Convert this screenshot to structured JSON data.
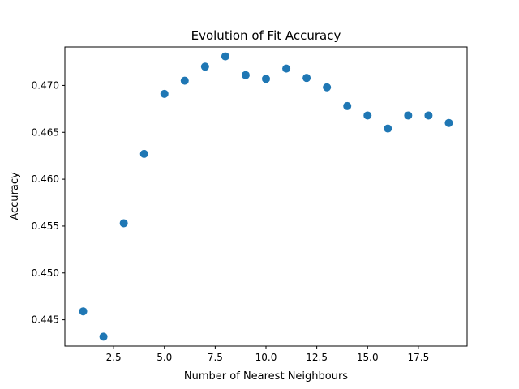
{
  "chart_data": {
    "type": "scatter",
    "title": "Evolution of Fit Accuracy",
    "xlabel": "Number of Nearest Neighbours",
    "ylabel": "Accuracy",
    "xlim": [
      0.1,
      19.9
    ],
    "ylim": [
      0.4422,
      0.4741
    ],
    "xticks": [
      2.5,
      5.0,
      7.5,
      10.0,
      12.5,
      15.0,
      17.5
    ],
    "xtick_labels": [
      "2.5",
      "5.0",
      "7.5",
      "10.0",
      "12.5",
      "15.0",
      "17.5"
    ],
    "yticks": [
      0.445,
      0.45,
      0.455,
      0.46,
      0.465,
      0.47
    ],
    "ytick_labels": [
      "0.445",
      "0.450",
      "0.455",
      "0.460",
      "0.465",
      "0.470"
    ],
    "grid": false,
    "marker_color": "#1f77b4",
    "points": [
      {
        "x": 1,
        "y": 0.4459
      },
      {
        "x": 2,
        "y": 0.4432
      },
      {
        "x": 3,
        "y": 0.4553
      },
      {
        "x": 4,
        "y": 0.4627
      },
      {
        "x": 5,
        "y": 0.4691
      },
      {
        "x": 6,
        "y": 0.4705
      },
      {
        "x": 7,
        "y": 0.472
      },
      {
        "x": 8,
        "y": 0.4731
      },
      {
        "x": 9,
        "y": 0.4711
      },
      {
        "x": 10,
        "y": 0.4707
      },
      {
        "x": 11,
        "y": 0.4718
      },
      {
        "x": 12,
        "y": 0.4708
      },
      {
        "x": 13,
        "y": 0.4698
      },
      {
        "x": 14,
        "y": 0.4678
      },
      {
        "x": 15,
        "y": 0.4668
      },
      {
        "x": 16,
        "y": 0.4654
      },
      {
        "x": 17,
        "y": 0.4668
      },
      {
        "x": 18,
        "y": 0.4668
      },
      {
        "x": 19,
        "y": 0.466
      }
    ]
  }
}
